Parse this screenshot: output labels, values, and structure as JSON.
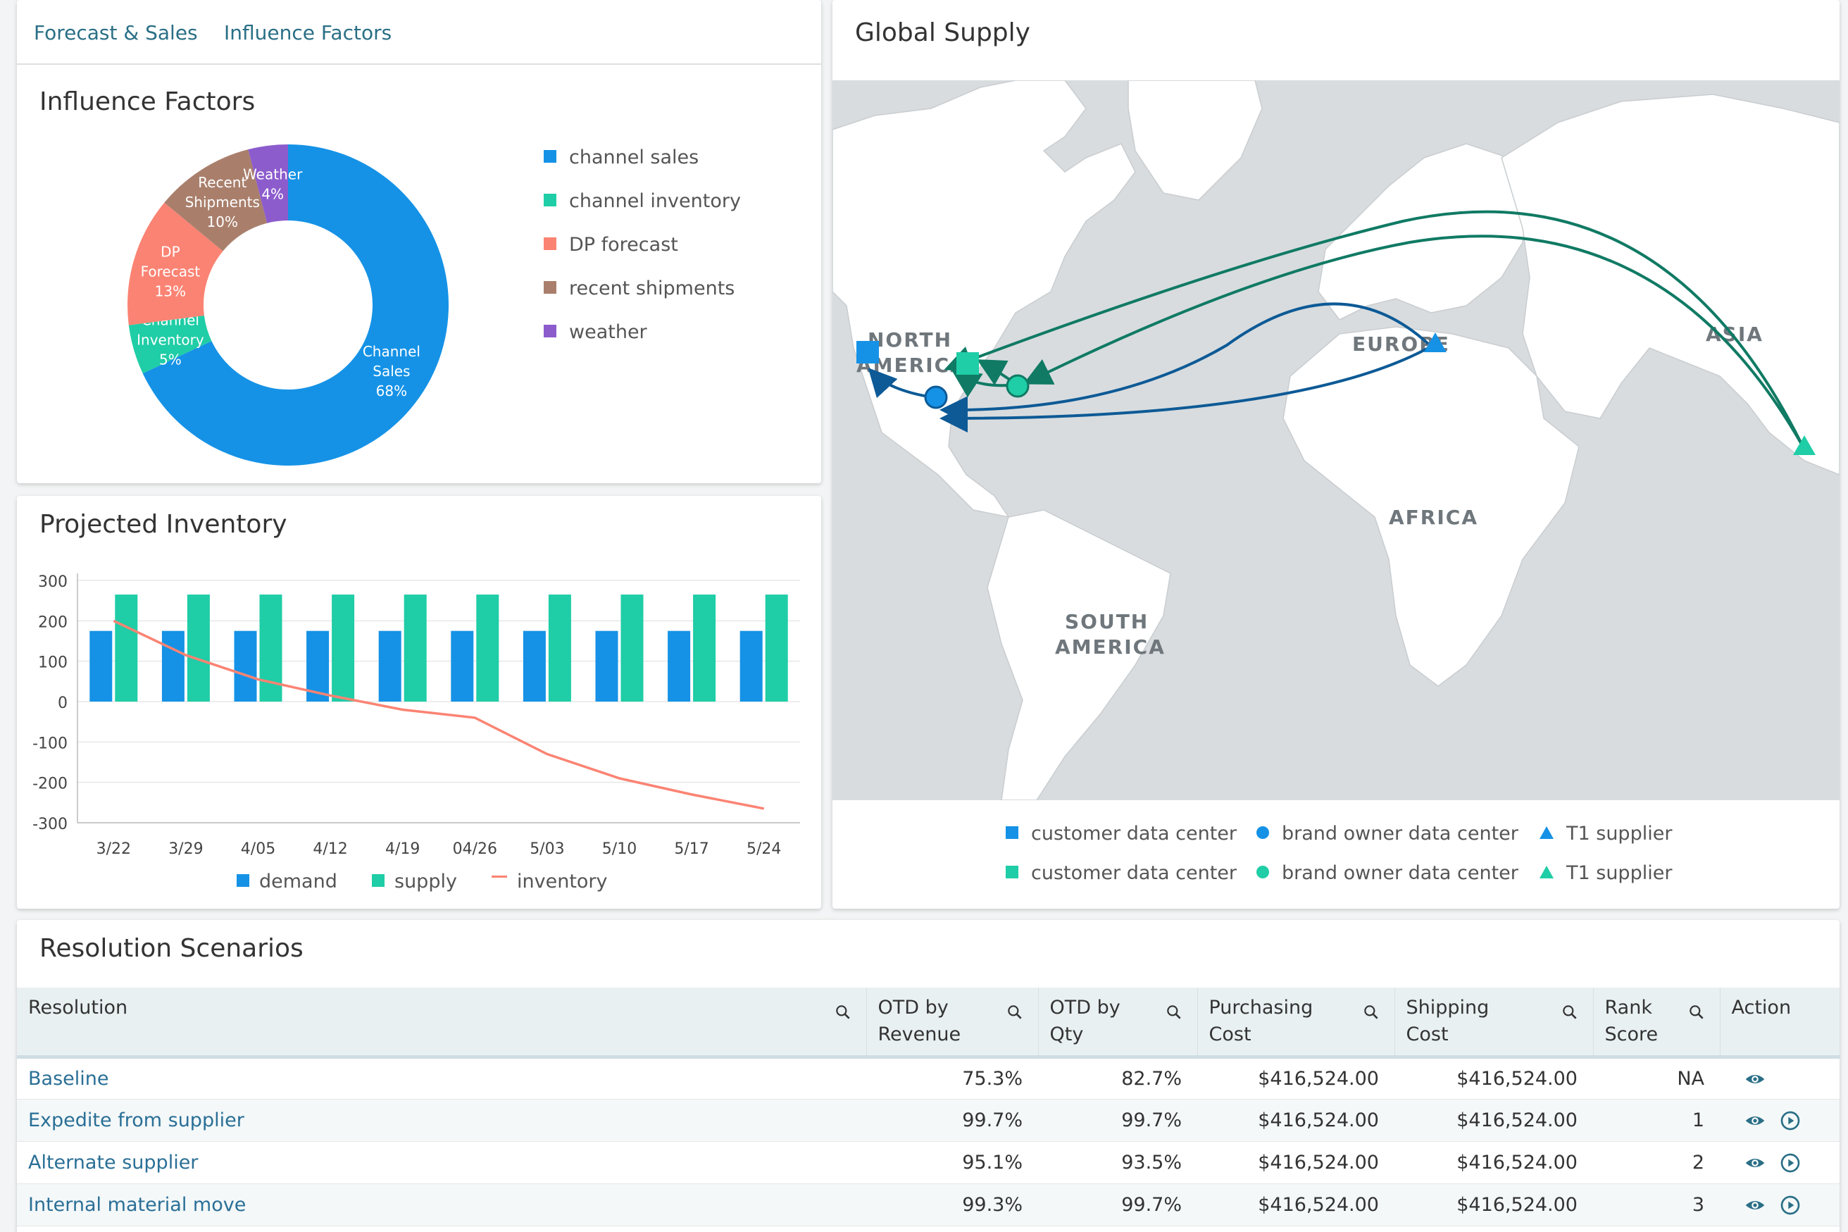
{
  "tabs": [
    {
      "label": "Forecast & Sales"
    },
    {
      "label": "Influence Factors"
    }
  ],
  "influence": {
    "title": "Influence Factors",
    "legend": [
      "channel sales",
      "channel inventory",
      "DP forecast",
      "recent shipments",
      "weather"
    ],
    "colors": {
      "channel_sales": "#1592e6",
      "channel_inventory": "#1fcda6",
      "dp_forecast": "#fb8373",
      "recent_shipments": "#a97f6c",
      "weather": "#8c5ccd"
    }
  },
  "chart_data": [
    {
      "type": "pie",
      "title": "Influence Factors",
      "slices": [
        {
          "name": "Channel Sales",
          "value": 68,
          "label_lines": [
            "Channel",
            "Sales",
            "68%"
          ]
        },
        {
          "name": "Channel Inventory",
          "value": 5,
          "label_lines": [
            "Channel",
            "Inventory",
            "5%"
          ]
        },
        {
          "name": "DP Forecast",
          "value": 13,
          "label_lines": [
            "DP",
            "Forecast",
            "13%"
          ]
        },
        {
          "name": "Recent Shipments",
          "value": 10,
          "label_lines": [
            "Recent",
            "Shipments",
            "10%"
          ]
        },
        {
          "name": "Weather",
          "value": 4,
          "label_lines": [
            "Weather",
            "4%"
          ]
        }
      ]
    },
    {
      "type": "bar",
      "title": "Projected Inventory",
      "categories": [
        "3/22",
        "3/29",
        "4/05",
        "4/12",
        "4/19",
        "04/26",
        "5/03",
        "5/10",
        "5/17",
        "5/24"
      ],
      "series": [
        {
          "name": "demand",
          "type": "bar",
          "values": [
            175,
            175,
            175,
            175,
            175,
            175,
            175,
            175,
            175,
            175
          ]
        },
        {
          "name": "supply",
          "type": "bar",
          "values": [
            265,
            265,
            265,
            265,
            265,
            265,
            265,
            265,
            265,
            265
          ]
        },
        {
          "name": "inventory",
          "type": "line",
          "values": [
            200,
            115,
            55,
            15,
            -20,
            -40,
            -130,
            -190,
            -230,
            -265
          ]
        }
      ],
      "yticks": [
        "300",
        "200",
        "100",
        "0",
        "-100",
        "-200",
        "-300"
      ],
      "ylim": [
        -300,
        300
      ]
    }
  ],
  "projected": {
    "title": "Projected Inventory",
    "legend": [
      "demand",
      "supply",
      "inventory"
    ],
    "colors": {
      "demand": "#1592e6",
      "supply": "#1fcda6",
      "inventory": "#fb8373"
    }
  },
  "global_supply": {
    "title": "Global Supply",
    "map_labels": {
      "north_america": [
        "NORTH",
        "AMERICA"
      ],
      "europe": "EUROPE",
      "asia": "ASIA",
      "africa": "AFRICA",
      "south_america": [
        "SOUTH",
        "AMERICA"
      ]
    },
    "legend_row1": [
      "customer data center",
      "brand owner data center",
      "T1 supplier"
    ],
    "legend_row2": [
      "customer data center",
      "brand owner data center",
      "T1 supplier"
    ],
    "colors": {
      "blue": "#1592e6",
      "green": "#1fcda6",
      "route_blue": "#0d5a96",
      "route_green": "#107a64",
      "ocean": "#d8dcdf",
      "land": "#ffffff"
    }
  },
  "resolution": {
    "title": "Resolution Scenarios",
    "columns": [
      {
        "label_lines": [
          "Resolution"
        ]
      },
      {
        "label_lines": [
          "OTD by",
          "Revenue"
        ]
      },
      {
        "label_lines": [
          "OTD by",
          "Qty"
        ]
      },
      {
        "label_lines": [
          "Purchasing",
          "Cost"
        ]
      },
      {
        "label_lines": [
          "Shipping",
          "Cost"
        ]
      },
      {
        "label_lines": [
          "Rank",
          "Score"
        ]
      },
      {
        "label_lines": [
          "Action"
        ]
      }
    ],
    "rows": [
      {
        "name": "Baseline",
        "otd_rev": "75.3%",
        "otd_qty": "82.7%",
        "purchasing": "$416,524.00",
        "shipping": "$416,524.00",
        "rank": "NA",
        "play": false
      },
      {
        "name": "Expedite from supplier",
        "otd_rev": "99.7%",
        "otd_qty": "99.7%",
        "purchasing": "$416,524.00",
        "shipping": "$416,524.00",
        "rank": "1",
        "play": true
      },
      {
        "name": "Alternate supplier",
        "otd_rev": "95.1%",
        "otd_qty": "93.5%",
        "purchasing": "$416,524.00",
        "shipping": "$416,524.00",
        "rank": "2",
        "play": true
      },
      {
        "name": "Internal material move",
        "otd_rev": "99.3%",
        "otd_qty": "99.7%",
        "purchasing": "$416,524.00",
        "shipping": "$416,524.00",
        "rank": "3",
        "play": true
      }
    ]
  }
}
